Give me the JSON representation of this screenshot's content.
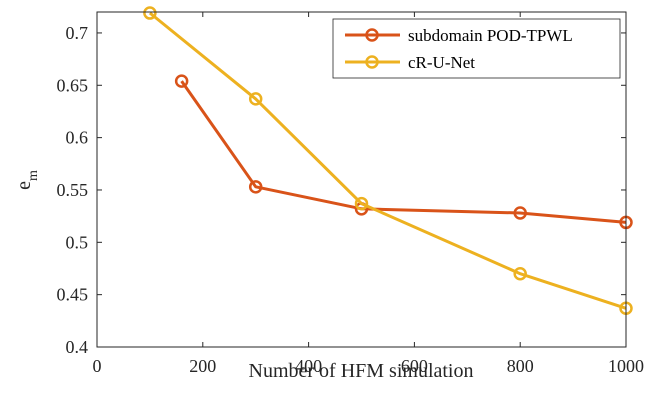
{
  "chart_data": {
    "type": "line",
    "xlabel": "Number of HFM simulation",
    "ylabel": "e",
    "ylabel_subscript": "m",
    "xlim": [
      0,
      1000
    ],
    "ylim": [
      0.4,
      0.72
    ],
    "xticks": [
      0,
      200,
      400,
      600,
      800,
      1000
    ],
    "yticks": [
      0.4,
      0.45,
      0.5,
      0.55,
      0.6,
      0.65,
      0.7
    ],
    "xtick_labels": [
      "0",
      "200",
      "400",
      "600",
      "800",
      "1000"
    ],
    "ytick_labels": [
      "0.4",
      "0.45",
      "0.5",
      "0.55",
      "0.6",
      "0.65",
      "0.7"
    ],
    "grid": false,
    "legend_position": "top-right",
    "series": [
      {
        "name": "subdomain POD-TPWL",
        "color": "#D95319",
        "x": [
          160,
          300,
          500,
          800,
          1000
        ],
        "y": [
          0.654,
          0.553,
          0.532,
          0.528,
          0.519
        ]
      },
      {
        "name": "cR-U-Net",
        "color": "#EDB120",
        "x": [
          100,
          300,
          500,
          800,
          1000
        ],
        "y": [
          0.719,
          0.637,
          0.537,
          0.47,
          0.437
        ]
      }
    ]
  }
}
